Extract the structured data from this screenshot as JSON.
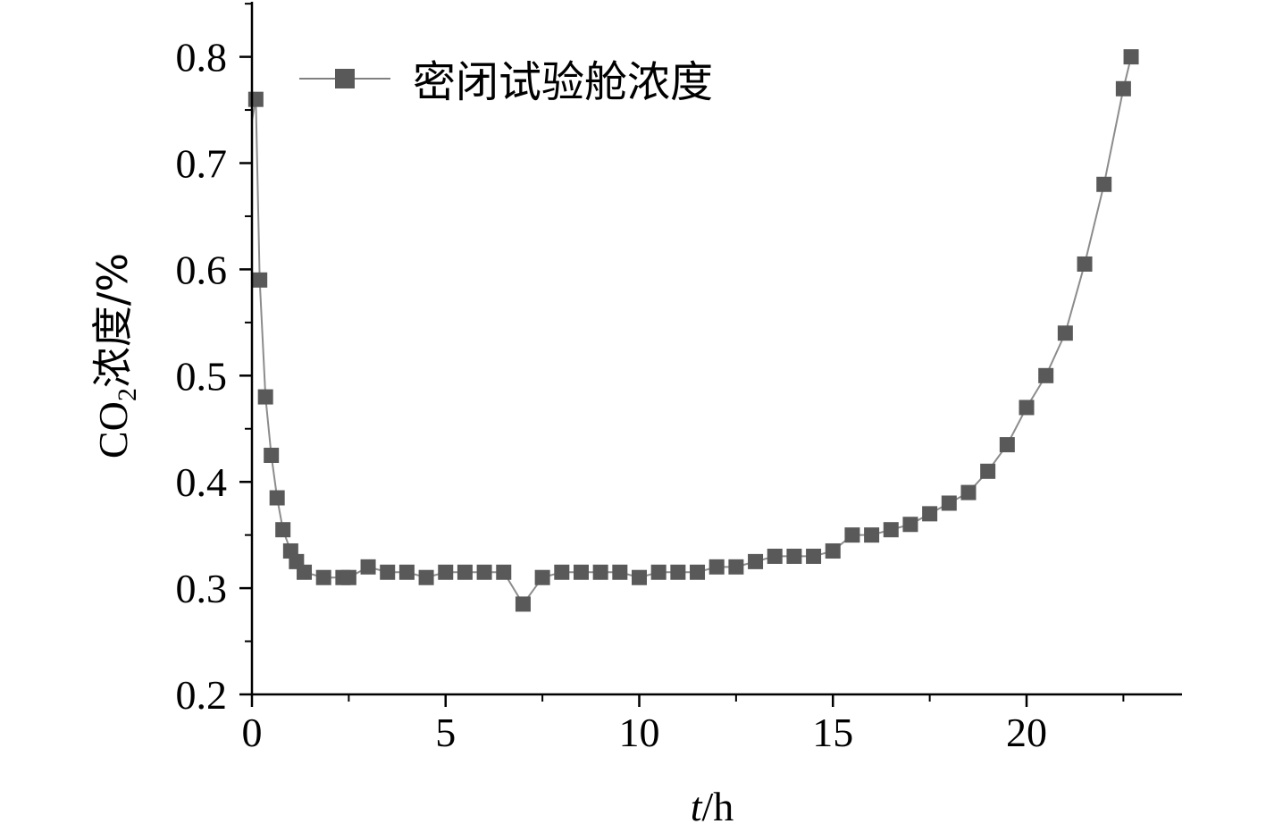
{
  "chart_data": {
    "type": "line",
    "xlabel": {
      "var": "t",
      "unit": "/h"
    },
    "ylabel": {
      "pre": "CO",
      "sub": "2",
      "post": "浓度/%"
    },
    "xlim": [
      0,
      24
    ],
    "ylim": [
      0.2,
      0.85
    ],
    "xticks": [
      0,
      5,
      10,
      15,
      20
    ],
    "xtick_labels": [
      "0",
      "5",
      "10",
      "15",
      "20"
    ],
    "yticks": [
      0.2,
      0.3,
      0.4,
      0.5,
      0.6,
      0.7,
      0.8
    ],
    "ytick_labels": [
      "0.2",
      "0.3",
      "0.4",
      "0.5",
      "0.6",
      "0.7",
      "0.8"
    ],
    "grid": false,
    "legend_position": "top-left",
    "series": [
      {
        "name": "密闭试验舱浓度",
        "color": "#595959",
        "marker": "square",
        "line_start": [
          0,
          0.74
        ],
        "x": [
          0.1,
          0.2,
          0.35,
          0.5,
          0.65,
          0.8,
          1.0,
          1.15,
          1.35,
          1.85,
          2.35,
          2.5,
          3.0,
          3.5,
          4.0,
          4.5,
          5.0,
          5.5,
          6.0,
          6.5,
          7.0,
          7.5,
          8.0,
          8.5,
          9.0,
          9.5,
          10.0,
          10.5,
          11.0,
          11.5,
          12.0,
          12.5,
          13.0,
          13.5,
          14.0,
          14.5,
          15.0,
          15.5,
          16.0,
          16.5,
          17.0,
          17.5,
          18.0,
          18.5,
          19.0,
          19.5,
          20.0,
          20.5,
          21.0,
          21.5,
          22.0,
          22.5,
          22.7
        ],
        "y": [
          0.76,
          0.59,
          0.48,
          0.425,
          0.385,
          0.355,
          0.335,
          0.325,
          0.315,
          0.31,
          0.31,
          0.31,
          0.32,
          0.315,
          0.315,
          0.31,
          0.315,
          0.315,
          0.315,
          0.315,
          0.285,
          0.31,
          0.315,
          0.315,
          0.315,
          0.315,
          0.31,
          0.315,
          0.315,
          0.315,
          0.32,
          0.32,
          0.325,
          0.33,
          0.33,
          0.33,
          0.335,
          0.35,
          0.35,
          0.355,
          0.36,
          0.37,
          0.38,
          0.39,
          0.41,
          0.435,
          0.47,
          0.5,
          0.54,
          0.605,
          0.68,
          0.77,
          0.8
        ]
      }
    ]
  }
}
